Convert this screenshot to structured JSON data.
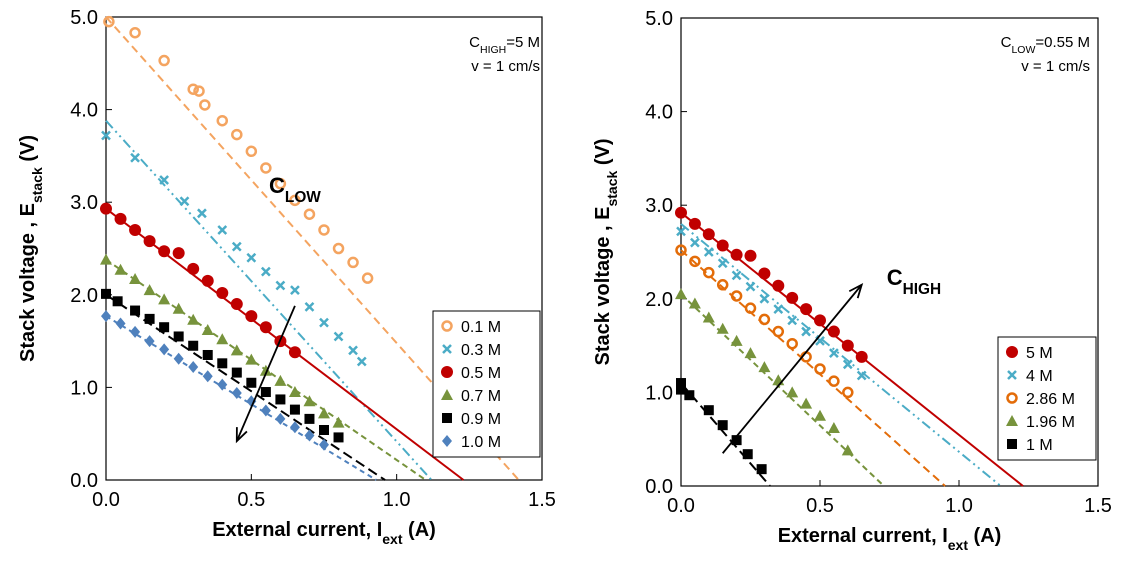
{
  "chart_data": [
    {
      "type": "scatter",
      "xlabel": {
        "main": "External current, I",
        "sub": "ext",
        "post": " (A)"
      },
      "ylabel": {
        "main": "Stack voltage , E",
        "sub": "stack",
        "post": " (V)"
      },
      "xlim": [
        0,
        1.5
      ],
      "ylim": [
        0,
        5.0
      ],
      "xticks": [
        "0.0",
        "0.5",
        "1.0",
        "1.5"
      ],
      "yticks": [
        "0.0",
        "1.0",
        "2.0",
        "3.0",
        "4.0",
        "5.0"
      ],
      "grid": false,
      "legend_position": "bottom-right",
      "annotations": {
        "line1_main": "C",
        "line1_sub": "HIGH",
        "line1_post": "=5 M",
        "line2": "v = 1 cm/s"
      },
      "arrow_label": {
        "main": "C",
        "sub": "LOW"
      },
      "series": [
        {
          "name": "0.1 M",
          "color": "#F4A460",
          "marker": "ring",
          "dash": "8,5",
          "x": [
            0.01,
            0.1,
            0.2,
            0.3,
            0.32,
            0.34,
            0.4,
            0.45,
            0.5,
            0.55,
            0.6,
            0.65,
            0.7,
            0.75,
            0.8,
            0.85,
            0.9
          ],
          "y": [
            4.95,
            4.83,
            4.53,
            4.22,
            4.2,
            4.05,
            3.88,
            3.73,
            3.55,
            3.37,
            3.2,
            3.02,
            2.87,
            2.7,
            2.5,
            2.35,
            2.18
          ],
          "fit": [
            [
              0.0,
              5.0
            ],
            [
              1.42,
              0.0
            ]
          ]
        },
        {
          "name": "0.3 M",
          "color": "#4BACC6",
          "marker": "x",
          "dash": "10,4,2,4,2,4",
          "x": [
            0.0,
            0.1,
            0.2,
            0.27,
            0.33,
            0.4,
            0.45,
            0.5,
            0.55,
            0.6,
            0.65,
            0.7,
            0.75,
            0.8,
            0.85,
            0.88
          ],
          "y": [
            3.72,
            3.48,
            3.24,
            3.01,
            2.88,
            2.7,
            2.52,
            2.4,
            2.25,
            2.1,
            2.05,
            1.87,
            1.7,
            1.55,
            1.4,
            1.28
          ],
          "fit": [
            [
              0.0,
              3.88
            ],
            [
              1.12,
              0.0
            ]
          ]
        },
        {
          "name": "0.5 M",
          "color": "#C00000",
          "marker": "dot",
          "dash": "",
          "x": [
            0.0,
            0.05,
            0.1,
            0.15,
            0.2,
            0.25,
            0.3,
            0.35,
            0.4,
            0.45,
            0.5,
            0.55,
            0.6,
            0.65
          ],
          "y": [
            2.93,
            2.82,
            2.7,
            2.58,
            2.47,
            2.45,
            2.28,
            2.15,
            2.02,
            1.9,
            1.77,
            1.65,
            1.5,
            1.38
          ],
          "fit": [
            [
              0.0,
              2.93
            ],
            [
              1.23,
              0.0
            ]
          ]
        },
        {
          "name": "0.7 M",
          "color": "#77933C",
          "marker": "tri",
          "dash": "6,4",
          "x": [
            0.0,
            0.05,
            0.1,
            0.15,
            0.2,
            0.25,
            0.3,
            0.35,
            0.4,
            0.45,
            0.5,
            0.55,
            0.6,
            0.65,
            0.7,
            0.75,
            0.8
          ],
          "y": [
            2.38,
            2.27,
            2.17,
            2.05,
            1.95,
            1.85,
            1.73,
            1.62,
            1.52,
            1.4,
            1.3,
            1.18,
            1.07,
            0.95,
            0.85,
            0.72,
            0.62
          ],
          "fit": [
            [
              0.0,
              2.38
            ],
            [
              1.1,
              0.0
            ]
          ]
        },
        {
          "name": "0.9 M",
          "color": "#000000",
          "marker": "sq",
          "dash": "10,5",
          "x": [
            0.0,
            0.04,
            0.1,
            0.15,
            0.2,
            0.25,
            0.3,
            0.35,
            0.4,
            0.45,
            0.5,
            0.55,
            0.6,
            0.65,
            0.7,
            0.75,
            0.8
          ],
          "y": [
            2.01,
            1.93,
            1.83,
            1.74,
            1.65,
            1.55,
            1.45,
            1.35,
            1.26,
            1.16,
            1.05,
            0.95,
            0.87,
            0.76,
            0.66,
            0.54,
            0.46
          ],
          "fit": [
            [
              0.0,
              2.0
            ],
            [
              0.96,
              0.0
            ]
          ]
        },
        {
          "name": "1.0 M",
          "color": "#4F81BD",
          "marker": "dia",
          "dash": "5,4",
          "x": [
            0.0,
            0.05,
            0.1,
            0.15,
            0.2,
            0.25,
            0.3,
            0.35,
            0.4,
            0.45,
            0.5,
            0.55,
            0.6,
            0.65,
            0.7,
            0.75
          ],
          "y": [
            1.77,
            1.69,
            1.6,
            1.5,
            1.41,
            1.31,
            1.22,
            1.12,
            1.03,
            0.94,
            0.85,
            0.75,
            0.66,
            0.57,
            0.48,
            0.38
          ],
          "fit": [
            [
              0.0,
              1.77
            ],
            [
              0.93,
              0.0
            ]
          ]
        }
      ]
    },
    {
      "type": "scatter",
      "xlabel": {
        "main": "External current, I",
        "sub": "ext",
        "post": " (A)"
      },
      "ylabel": {
        "main": "Stack voltage , E",
        "sub": "stack",
        "post": " (V)"
      },
      "xlim": [
        0,
        1.5
      ],
      "ylim": [
        0,
        5.0
      ],
      "xticks": [
        "0.0",
        "0.5",
        "1.0",
        "1.5"
      ],
      "yticks": [
        "0.0",
        "1.0",
        "2.0",
        "3.0",
        "4.0",
        "5.0"
      ],
      "grid": false,
      "legend_position": "bottom-right",
      "annotations": {
        "line1_main": "C",
        "line1_sub": "LOW",
        "line1_post": "=0.55 M",
        "line2": "v = 1 cm/s"
      },
      "arrow_label": {
        "main": "C",
        "sub": "HIGH"
      },
      "series": [
        {
          "name": "5 M",
          "color": "#C00000",
          "marker": "dot",
          "dash": "",
          "x": [
            0.0,
            0.05,
            0.1,
            0.15,
            0.2,
            0.25,
            0.3,
            0.35,
            0.4,
            0.45,
            0.5,
            0.55,
            0.6,
            0.65
          ],
          "y": [
            2.92,
            2.8,
            2.69,
            2.57,
            2.47,
            2.46,
            2.27,
            2.14,
            2.01,
            1.89,
            1.77,
            1.65,
            1.5,
            1.38
          ],
          "fit": [
            [
              0.0,
              2.92
            ],
            [
              1.23,
              0.0
            ]
          ]
        },
        {
          "name": "4 M",
          "color": "#4BACC6",
          "marker": "x",
          "dash": "10,4,2,4,2,4",
          "x": [
            0.0,
            0.05,
            0.1,
            0.15,
            0.2,
            0.25,
            0.3,
            0.35,
            0.4,
            0.45,
            0.5,
            0.55,
            0.6,
            0.65
          ],
          "y": [
            2.72,
            2.6,
            2.5,
            2.38,
            2.25,
            2.13,
            2.0,
            1.89,
            1.77,
            1.65,
            1.55,
            1.42,
            1.3,
            1.18
          ],
          "fit": [
            [
              0.0,
              2.8
            ],
            [
              1.15,
              0.0
            ]
          ]
        },
        {
          "name": "2.86 M",
          "color": "#E36C09",
          "marker": "ring",
          "dash": "8,5",
          "x": [
            0.0,
            0.05,
            0.1,
            0.15,
            0.2,
            0.25,
            0.3,
            0.35,
            0.4,
            0.45,
            0.5,
            0.55,
            0.6
          ],
          "y": [
            2.52,
            2.4,
            2.28,
            2.15,
            2.03,
            1.9,
            1.78,
            1.65,
            1.52,
            1.38,
            1.25,
            1.12,
            1.0
          ],
          "fit": [
            [
              0.0,
              2.52
            ],
            [
              0.95,
              0.0
            ]
          ]
        },
        {
          "name": "1.96 M",
          "color": "#77933C",
          "marker": "tri",
          "dash": "6,4",
          "x": [
            0.0,
            0.05,
            0.1,
            0.15,
            0.2,
            0.25,
            0.3,
            0.35,
            0.4,
            0.45,
            0.5,
            0.55,
            0.6
          ],
          "y": [
            2.05,
            1.95,
            1.8,
            1.68,
            1.55,
            1.42,
            1.27,
            1.13,
            1.0,
            0.88,
            0.75,
            0.62,
            0.38
          ],
          "fit": [
            [
              0.0,
              2.05
            ],
            [
              0.73,
              0.0
            ]
          ]
        },
        {
          "name": "1 M",
          "color": "#000000",
          "marker": "sq",
          "dash": "10,5",
          "x": [
            0.0,
            0.0,
            0.03,
            0.1,
            0.15,
            0.2,
            0.24,
            0.29
          ],
          "y": [
            1.1,
            1.03,
            0.97,
            0.81,
            0.65,
            0.49,
            0.34,
            0.18
          ],
          "fit": [
            [
              0.0,
              1.1
            ],
            [
              0.32,
              0.0
            ]
          ]
        }
      ]
    }
  ]
}
